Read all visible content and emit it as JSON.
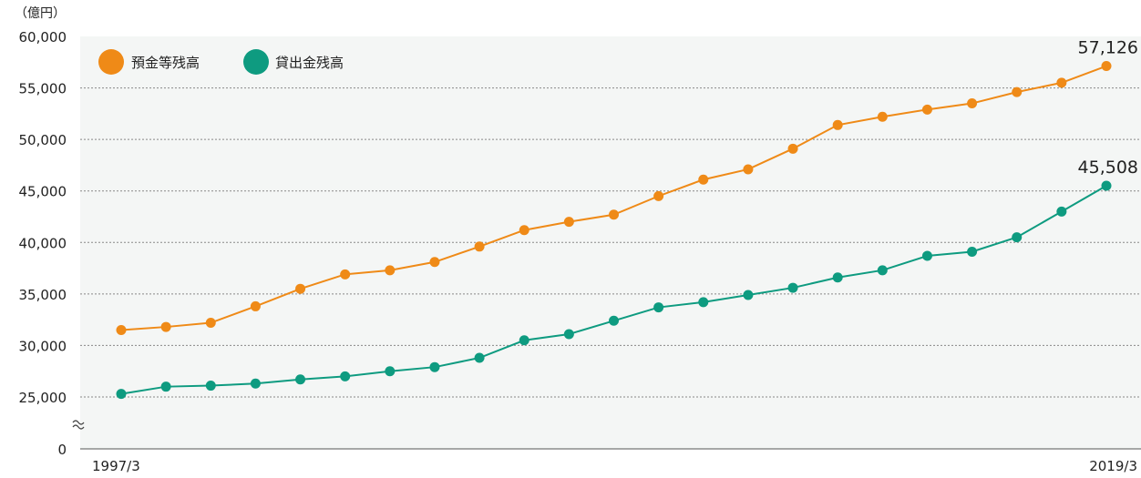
{
  "chart_data": {
    "type": "line",
    "unit_label": "（億円）",
    "x_start_label": "1997/3",
    "x_end_label": "2019/3",
    "y_ticks": [
      "60,000",
      "55,000",
      "50,000",
      "45,000",
      "40,000",
      "35,000",
      "30,000",
      "25,000",
      "0"
    ],
    "ylim": [
      25000,
      60000
    ],
    "axis_break": true,
    "grid": true,
    "legend_position": "top-left",
    "x_count": 23,
    "series": [
      {
        "name": "預金等残高",
        "color": "#ef8a17",
        "end_label": "57,126",
        "values": [
          31500,
          31800,
          32200,
          33800,
          35500,
          36900,
          37300,
          38100,
          39600,
          41200,
          42000,
          42700,
          44500,
          46100,
          47100,
          49100,
          51400,
          52200,
          52900,
          53500,
          54600,
          55500,
          57126
        ]
      },
      {
        "name": "貸出金残高",
        "color": "#0e9b80",
        "end_label": "45,508",
        "values": [
          25300,
          26000,
          26100,
          26300,
          26700,
          27000,
          27500,
          27900,
          28800,
          30500,
          31100,
          32400,
          33700,
          34200,
          34900,
          35600,
          36600,
          37300,
          38700,
          39100,
          40500,
          43000,
          45508
        ]
      }
    ]
  }
}
